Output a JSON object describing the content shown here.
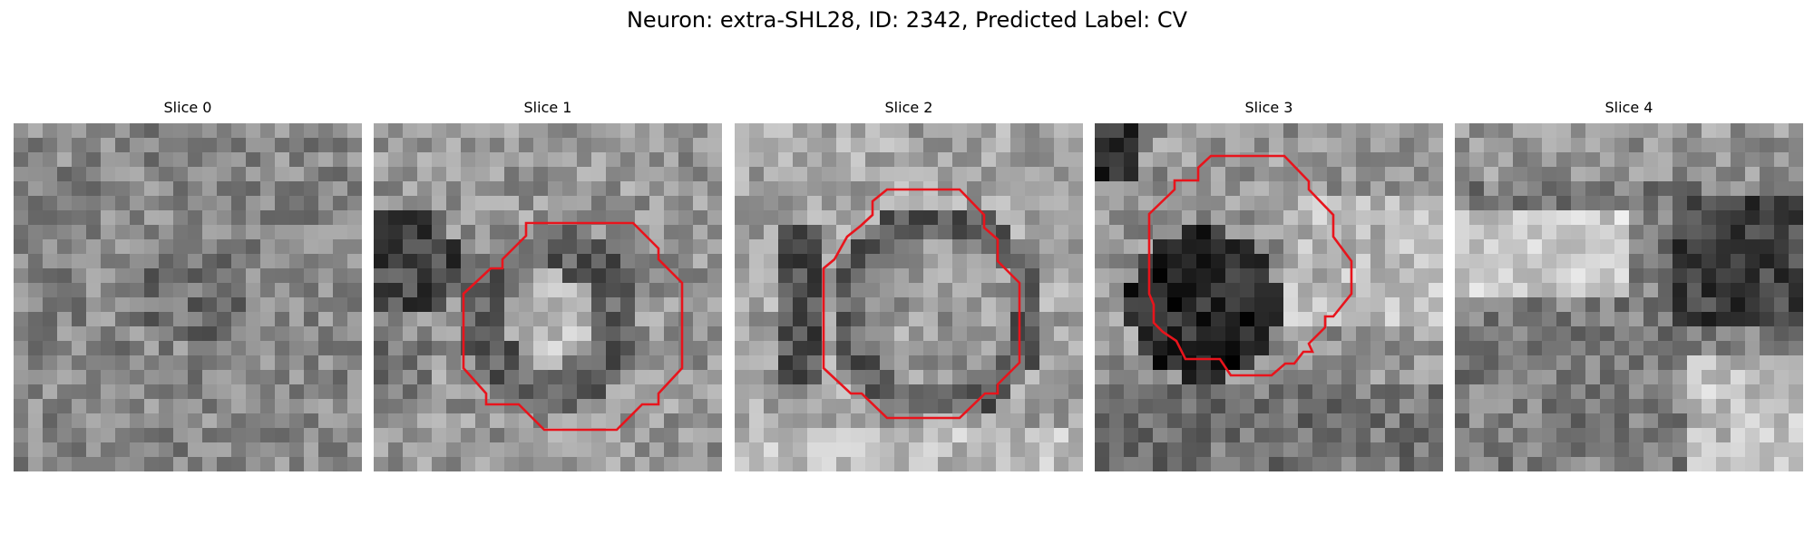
{
  "figure": {
    "title": "Neuron: extra-SHL28, ID: 2342, Predicted Label: CV",
    "contour_color": "#e8141c"
  },
  "slices": [
    {
      "title": "Slice 0",
      "has_contour": false
    },
    {
      "title": "Slice 1",
      "has_contour": true
    },
    {
      "title": "Slice 2",
      "has_contour": true
    },
    {
      "title": "Slice 3",
      "has_contour": true
    },
    {
      "title": "Slice 4",
      "has_contour": false
    }
  ]
}
